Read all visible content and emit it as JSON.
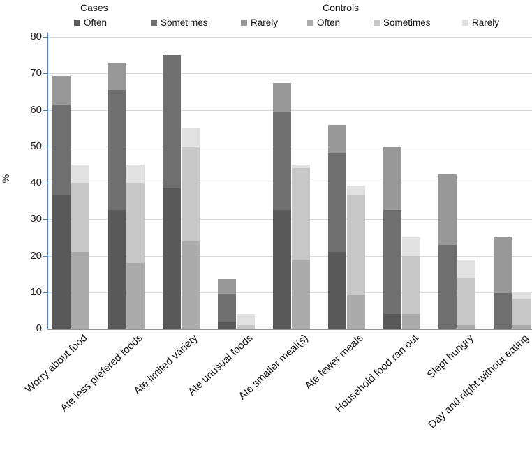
{
  "legend": {
    "cases_header": "Cases",
    "controls_header": "Controls",
    "items": [
      {
        "group": "Cases",
        "label": "Often",
        "color": "#595959"
      },
      {
        "group": "Cases",
        "label": "Sometimes",
        "color": "#6f6f6f"
      },
      {
        "group": "Cases",
        "label": "Rarely",
        "color": "#989898"
      },
      {
        "group": "Controls",
        "label": "Often",
        "color": "#ababab"
      },
      {
        "group": "Controls",
        "label": "Sometimes",
        "color": "#c7c7c7"
      },
      {
        "group": "Controls",
        "label": "Rarely",
        "color": "#e1e1e1"
      }
    ]
  },
  "chart_data": {
    "type": "bar",
    "stacked": true,
    "title": "",
    "xlabel": "",
    "ylabel": "%",
    "ylim": [
      0,
      80
    ],
    "yticks": [
      0,
      10,
      20,
      30,
      40,
      50,
      60,
      70,
      80
    ],
    "grid": true,
    "legend_position": "top",
    "axis_color": "#4f81bd",
    "gridline_color": "#d9d9d9",
    "categories": [
      "Worry about food",
      "Ate less prefered foods",
      "Ate limited variety",
      "Ate unusual foods",
      "Ate smaller meal(s)",
      "Ate fewer meals",
      "Household food ran out",
      "Slept hungry",
      "Day and night without eating"
    ],
    "series": [
      {
        "name": "Cases",
        "segments": [
          {
            "label": "Often",
            "color": "#595959",
            "values": [
              36.5,
              32.5,
              38.5,
              2.0,
              32.5,
              21.0,
              4.0,
              0.0,
              0.0
            ]
          },
          {
            "label": "Sometimes",
            "color": "#6f6f6f",
            "values": [
              25.0,
              33.0,
              36.5,
              7.5,
              27.0,
              27.0,
              28.5,
              23.0,
              9.7
            ]
          },
          {
            "label": "Rarely",
            "color": "#989898",
            "values": [
              7.8,
              7.5,
              0.0,
              4.0,
              7.8,
              7.8,
              17.5,
              19.3,
              15.3
            ]
          }
        ],
        "totals": [
          69.3,
          73.0,
          75.0,
          13.5,
          67.3,
          55.8,
          50.0,
          42.3,
          25.0
        ]
      },
      {
        "name": "Controls",
        "segments": [
          {
            "label": "Often",
            "color": "#ababab",
            "values": [
              21.0,
              18.0,
              24.0,
              0.0,
              19.0,
              9.2,
              4.0,
              1.0,
              1.0
            ]
          },
          {
            "label": "Sometimes",
            "color": "#c7c7c7",
            "values": [
              19.0,
              22.0,
              26.0,
              1.0,
              25.0,
              27.3,
              16.0,
              13.0,
              7.3
            ]
          },
          {
            "label": "Rarely",
            "color": "#e1e1e1",
            "values": [
              5.0,
              5.0,
              5.0,
              3.0,
              1.0,
              2.8,
              5.0,
              5.0,
              1.7
            ]
          }
        ],
        "totals": [
          45.0,
          45.0,
          55.0,
          4.0,
          45.0,
          39.3,
          25.0,
          19.0,
          10.0
        ]
      }
    ]
  }
}
